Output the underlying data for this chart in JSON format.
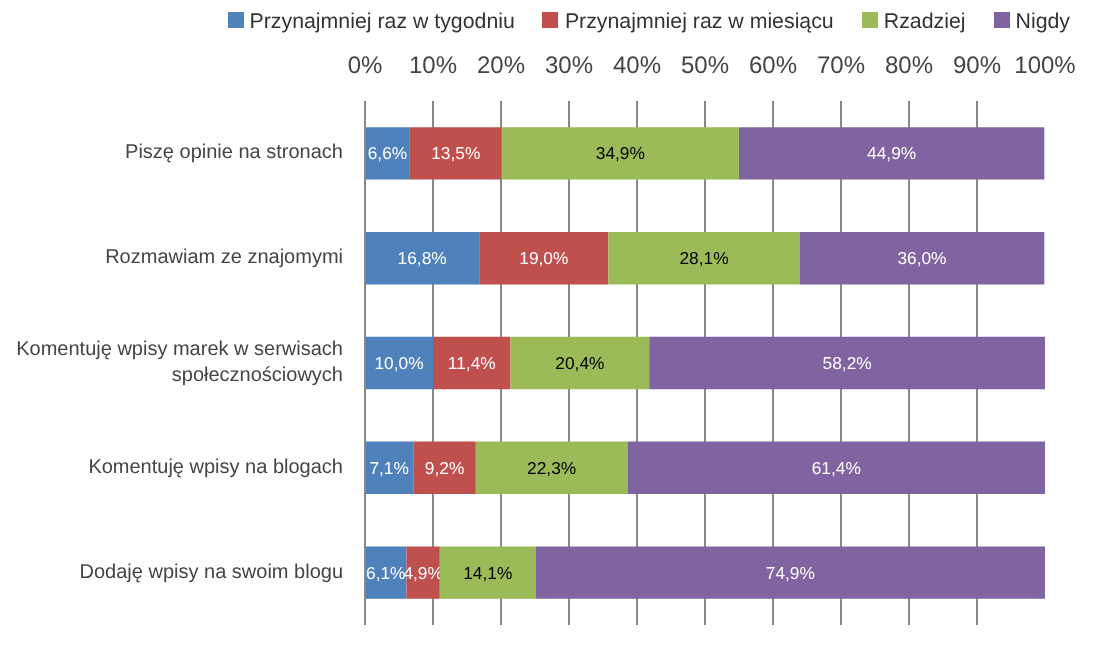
{
  "chart_data": {
    "type": "bar",
    "orientation": "horizontal",
    "stacked": true,
    "categories": [
      "Piszę opinie na stronach",
      "Rozmawiam ze znajomymi",
      "Komentuję wpisy marek w serwisach społecznościowych",
      "Komentuję wpisy na blogach",
      "Dodaję wpisy na swoim blogu"
    ],
    "series": [
      {
        "name": "Przynajmniej raz w tygodniu",
        "color": "#4f81bd",
        "values": [
          6.6,
          16.8,
          10.0,
          7.1,
          6.1
        ],
        "value_labels": [
          "6,6%",
          "16,8%",
          "10,0%",
          "7,1%",
          "6,1%"
        ]
      },
      {
        "name": "Przynajmniej raz w miesiącu",
        "color": "#c0504d",
        "values": [
          13.5,
          19.0,
          11.4,
          9.2,
          4.9
        ],
        "value_labels": [
          "13,5%",
          "19,0%",
          "11,4%",
          "9,2%",
          "4,9%"
        ]
      },
      {
        "name": "Rzadziej",
        "color": "#9bbb59",
        "values": [
          34.9,
          28.1,
          20.4,
          22.3,
          14.1
        ],
        "value_labels": [
          "34,9%",
          "28,1%",
          "20,4%",
          "22,3%",
          "14,1%"
        ]
      },
      {
        "name": "Nigdy",
        "color": "#8064a2",
        "values": [
          44.9,
          36.0,
          58.2,
          61.4,
          74.9
        ],
        "value_labels": [
          "44,9%",
          "36,0%",
          "58,2%",
          "61,4%",
          "74,9%"
        ]
      }
    ],
    "xlim": [
      0,
      100
    ],
    "xticks": [
      {
        "value": 0,
        "label": "0%"
      },
      {
        "value": 10,
        "label": "10%"
      },
      {
        "value": 20,
        "label": "20%"
      },
      {
        "value": 30,
        "label": "30%"
      },
      {
        "value": 40,
        "label": "40%"
      },
      {
        "value": 50,
        "label": "50%"
      },
      {
        "value": 60,
        "label": "60%"
      },
      {
        "value": 70,
        "label": "70%"
      },
      {
        "value": 80,
        "label": "80%"
      },
      {
        "value": 90,
        "label": "90%"
      },
      {
        "value": 100,
        "label": "100%"
      }
    ],
    "grid": "x",
    "legend": "top"
  }
}
